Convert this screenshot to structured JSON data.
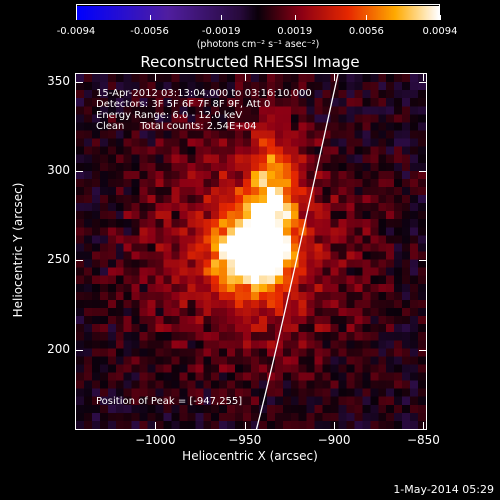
{
  "chart_data": {
    "type": "heatmap",
    "title": "Reconstructed RHESSI Image",
    "xlabel": "Heliocentric X (arcsec)",
    "ylabel": "Heliocentric Y (arcsec)",
    "xlim": [
      -1045,
      -848
    ],
    "ylim": [
      155,
      355
    ],
    "x_ticks": [
      "-1000",
      "-950",
      "-900",
      "-850"
    ],
    "y_ticks": [
      "200",
      "250",
      "300",
      "350"
    ],
    "colorbar": {
      "ticks": [
        "-0.0094",
        "-0.0056",
        "-0.0019",
        "0.0019",
        "0.0056",
        "0.0094"
      ],
      "units": "(photons cm⁻² s⁻¹ asec⁻²)",
      "range": [
        -0.0094,
        0.0094
      ]
    },
    "peak": [
      -947,
      255
    ],
    "info_lines": [
      "15-Apr-2012 03:13:04.000 to 03:16:10.000",
      "Detectors: 3F 5F 6F 7F 8F 9F, Att 0",
      "Energy Range: 6.0 - 12.0 keV",
      "Clean     Total counts: 2.54E+04"
    ],
    "peak_label": "Position of Peak = [-947,255]"
  },
  "footer": "1-May-2014 05:29"
}
